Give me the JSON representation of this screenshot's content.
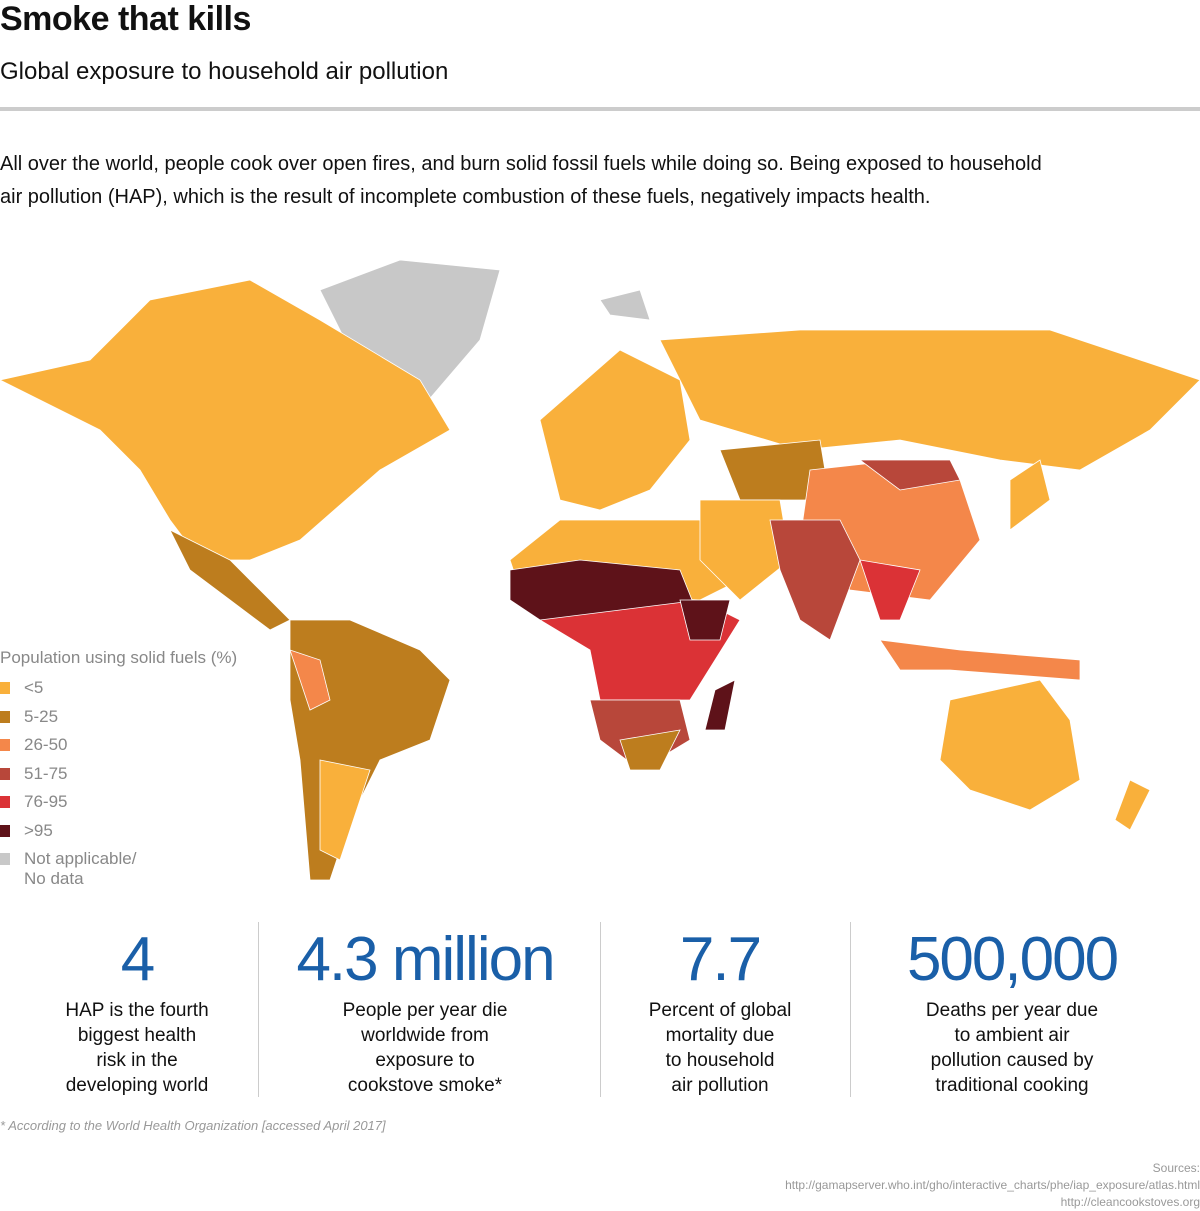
{
  "header": {
    "title": "Smoke that kills",
    "subtitle": "Global exposure to household air pollution"
  },
  "intro": [
    "All over the world, people cook over open fires, and burn solid fossil fuels while doing so.  Being exposed to household",
    "air pollution (HAP), which is the result of incomplete combustion of these fuels, negatively impacts health."
  ],
  "legend": {
    "title": "Population using solid fuels (%)",
    "items": [
      {
        "label": [
          "<5"
        ],
        "color": "#f9b03b"
      },
      {
        "label": [
          "5-25"
        ],
        "color": "#bd7d1e"
      },
      {
        "label": [
          "26-50"
        ],
        "color": "#f4874a"
      },
      {
        "label": [
          "51-75"
        ],
        "color": "#b8473a"
      },
      {
        "label": [
          "76-95"
        ],
        "color": "#db3236"
      },
      {
        "label": [
          ">95"
        ],
        "color": "#5e1219"
      },
      {
        "label": [
          "Not applicable/",
          "No data"
        ],
        "color": "#c8c8c8"
      }
    ]
  },
  "stats": [
    {
      "value": "4",
      "text": [
        "HAP is the fourth",
        "biggest health",
        "risk in the",
        "developing world"
      ]
    },
    {
      "value": "4.3 million",
      "text": [
        "People per year die",
        "worldwide from",
        "exposure to",
        "cookstove smoke*"
      ]
    },
    {
      "value": "7.7",
      "text": [
        "Percent of global",
        "mortality due",
        "to household",
        "air pollution"
      ]
    },
    {
      "value": "500,000",
      "text": [
        "Deaths per year due",
        "to ambient air",
        "pollution caused by",
        "traditional cooking"
      ]
    }
  ],
  "footnote": "* According to the World Health Organization [accessed April 2017]",
  "sources": [
    "Sources:",
    "http://gamapserver.who.int/gho/interactive_charts/phe/iap_exposure/atlas.html",
    "http://cleancookstoves.org"
  ]
}
